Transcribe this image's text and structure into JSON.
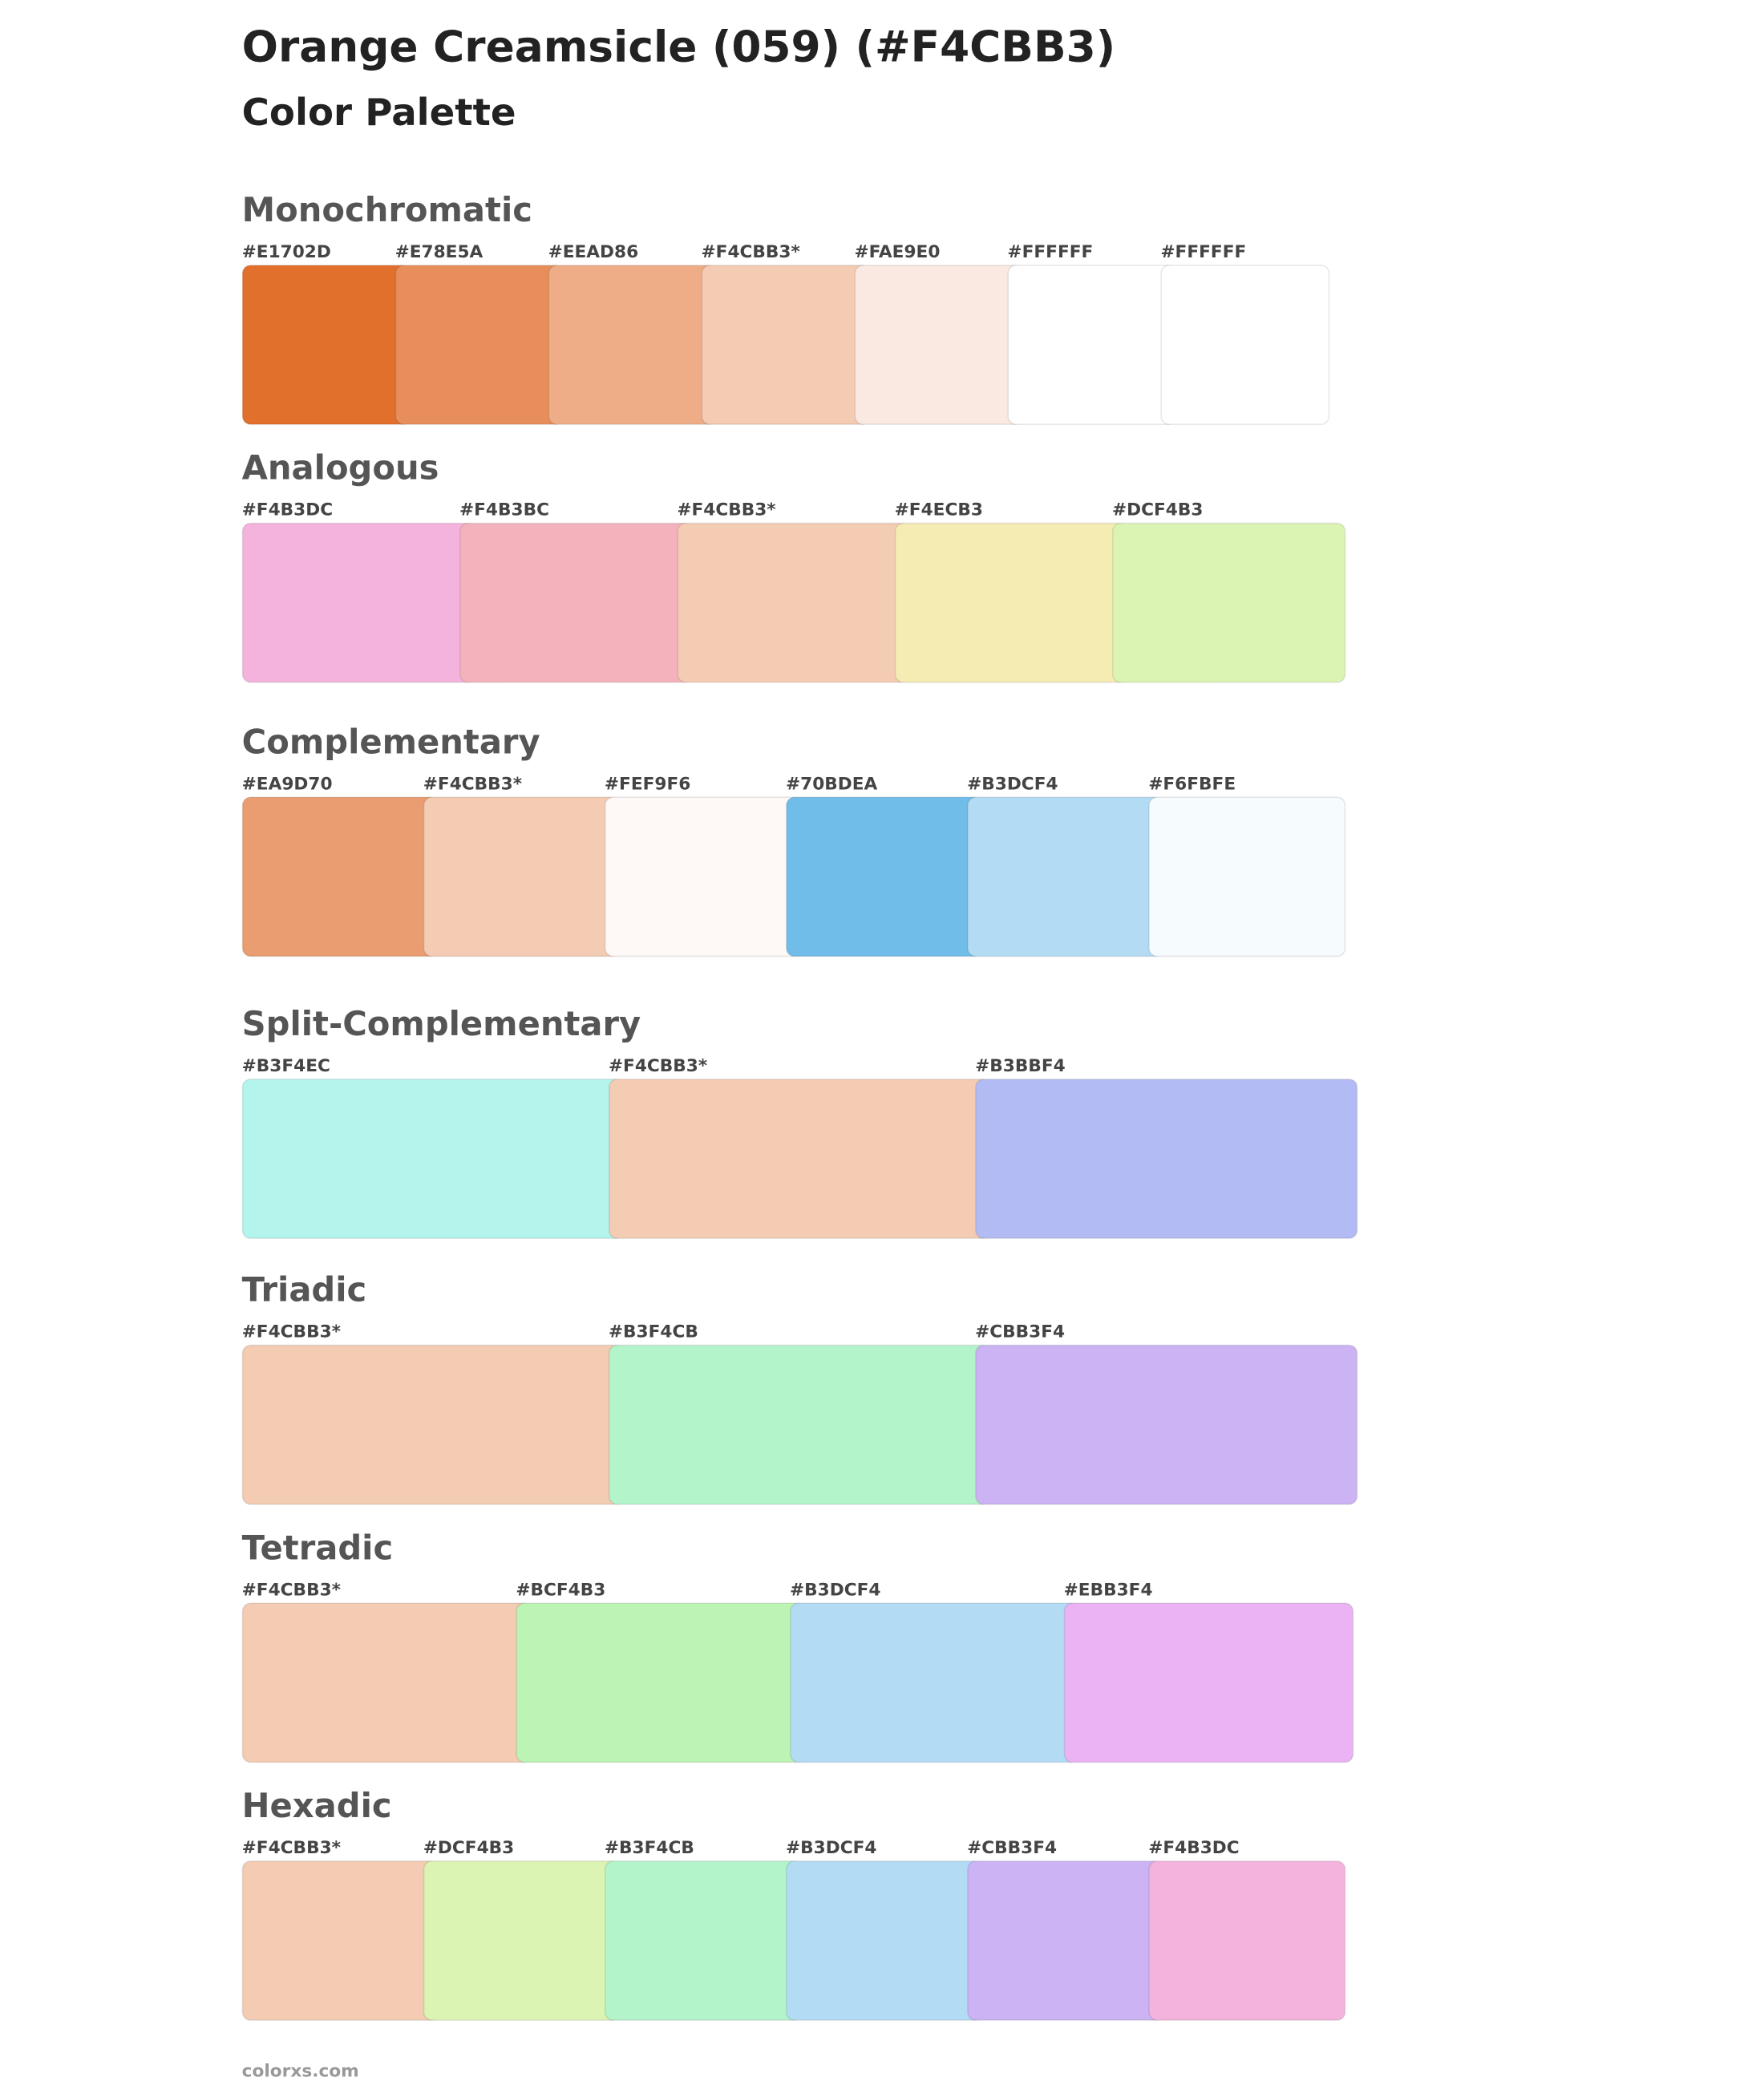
{
  "title": "Orange Creamsicle (059) (#F4CBB3)",
  "subtitle": "Color Palette",
  "sections": [
    {
      "name": "Monochromatic",
      "swatches": [
        {
          "label": "#E1702D",
          "color": "#E1702D"
        },
        {
          "label": "#E78E5A",
          "color": "#E78E5A"
        },
        {
          "label": "#EEAD86",
          "color": "#EEAD86"
        },
        {
          "label": "#F4CBB3*",
          "color": "#F4CBB3"
        },
        {
          "label": "#FAE9E0",
          "color": "#FAE9E0"
        },
        {
          "label": "#FFFFFF",
          "color": "#FFFFFF"
        },
        {
          "label": "#FFFFFF",
          "color": "#FFFFFF"
        }
      ]
    },
    {
      "name": "Analogous",
      "swatches": [
        {
          "label": "#F4B3DC",
          "color": "#F4B3DC"
        },
        {
          "label": "#F4B3BC",
          "color": "#F4B3BC"
        },
        {
          "label": "#F4CBB3*",
          "color": "#F4CBB3"
        },
        {
          "label": "#F4ECB3",
          "color": "#F4ECB3"
        },
        {
          "label": "#DCF4B3",
          "color": "#DCF4B3"
        }
      ]
    },
    {
      "name": "Complementary",
      "swatches": [
        {
          "label": "#EA9D70",
          "color": "#EA9D70"
        },
        {
          "label": "#F4CBB3*",
          "color": "#F4CBB3"
        },
        {
          "label": "#FEF9F6",
          "color": "#FEF9F6"
        },
        {
          "label": "#70BDEA",
          "color": "#70BDEA"
        },
        {
          "label": "#B3DCF4",
          "color": "#B3DCF4"
        },
        {
          "label": "#F6FBFE",
          "color": "#F6FBFE"
        }
      ]
    },
    {
      "name": "Split-Complementary",
      "swatches": [
        {
          "label": "#B3F4EC",
          "color": "#B3F4EC"
        },
        {
          "label": "#F4CBB3*",
          "color": "#F4CBB3"
        },
        {
          "label": "#B3BBF4",
          "color": "#B3BBF4"
        }
      ]
    },
    {
      "name": "Triadic",
      "swatches": [
        {
          "label": "#F4CBB3*",
          "color": "#F4CBB3"
        },
        {
          "label": "#B3F4CB",
          "color": "#B3F4CB"
        },
        {
          "label": "#CBB3F4",
          "color": "#CBB3F4"
        }
      ]
    },
    {
      "name": "Tetradic",
      "swatches": [
        {
          "label": "#F4CBB3*",
          "color": "#F4CBB3"
        },
        {
          "label": "#BCF4B3",
          "color": "#BCF4B3"
        },
        {
          "label": "#B3DCF4",
          "color": "#B3DCF4"
        },
        {
          "label": "#EBB3F4",
          "color": "#EBB3F4"
        }
      ]
    },
    {
      "name": "Hexadic",
      "swatches": [
        {
          "label": "#F4CBB3*",
          "color": "#F4CBB3"
        },
        {
          "label": "#DCF4B3",
          "color": "#DCF4B3"
        },
        {
          "label": "#B3F4CB",
          "color": "#B3F4CB"
        },
        {
          "label": "#B3DCF4",
          "color": "#B3DCF4"
        },
        {
          "label": "#CBB3F4",
          "color": "#CBB3F4"
        },
        {
          "label": "#F4B3DC",
          "color": "#F4B3DC"
        }
      ]
    }
  ],
  "footer": "colorxs.com"
}
